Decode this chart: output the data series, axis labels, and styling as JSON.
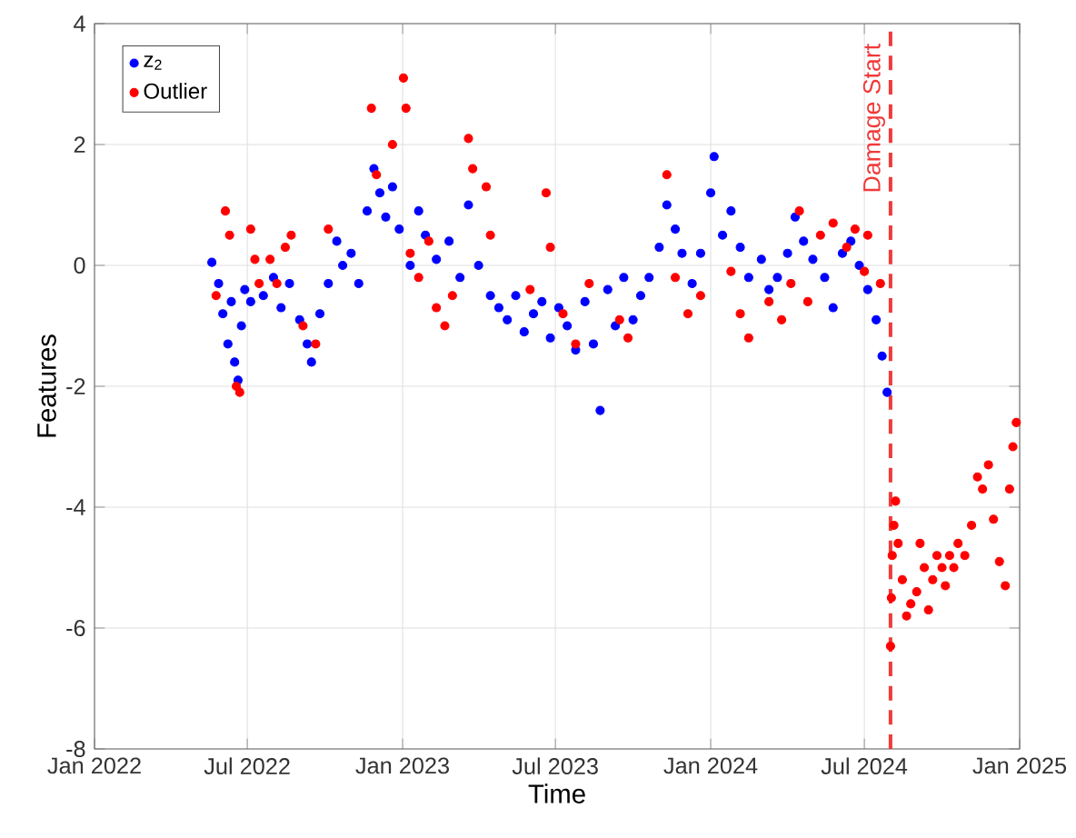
{
  "chart_data": {
    "type": "scatter",
    "xlabel": "Time",
    "ylabel": "Features",
    "xlim": [
      "2022-01-01",
      "2025-01-01"
    ],
    "ylim": [
      -8,
      4
    ],
    "xticks": [
      {
        "value": "2022-01-01",
        "label": "Jan 2022"
      },
      {
        "value": "2022-07-01",
        "label": "Jul 2022"
      },
      {
        "value": "2023-01-01",
        "label": "Jan 2023"
      },
      {
        "value": "2023-07-01",
        "label": "Jul 2023"
      },
      {
        "value": "2024-01-01",
        "label": "Jan 2024"
      },
      {
        "value": "2024-07-01",
        "label": "Jul 2024"
      },
      {
        "value": "2025-01-01",
        "label": "Jan 2025"
      }
    ],
    "yticks": [
      -8,
      -6,
      -4,
      -2,
      0,
      2,
      4
    ],
    "grid": true,
    "legend": "top left",
    "marker": "circle",
    "ref_lines": [
      {
        "axis": "x",
        "value": "2024-08-01",
        "label": "Damage Start",
        "color": "#f03a3a",
        "line_style": "dashed"
      }
    ],
    "series": [
      {
        "name": "z$_{2}$",
        "color": "#0000ff",
        "x": [
          "2022-05-20",
          "2022-05-28",
          "2022-06-02",
          "2022-06-08",
          "2022-06-12",
          "2022-06-16",
          "2022-06-20",
          "2022-06-24",
          "2022-06-28",
          "2022-07-05",
          "2022-07-20",
          "2022-08-01",
          "2022-08-10",
          "2022-08-20",
          "2022-09-01",
          "2022-09-10",
          "2022-09-15",
          "2022-09-25",
          "2022-10-05",
          "2022-10-15",
          "2022-10-22",
          "2022-11-01",
          "2022-11-10",
          "2022-11-20",
          "2022-11-28",
          "2022-12-05",
          "2022-12-12",
          "2022-12-20",
          "2022-12-28",
          "2023-01-10",
          "2023-01-20",
          "2023-01-28",
          "2023-02-10",
          "2023-02-25",
          "2023-03-10",
          "2023-03-20",
          "2023-04-01",
          "2023-04-15",
          "2023-04-25",
          "2023-05-05",
          "2023-05-15",
          "2023-05-25",
          "2023-06-05",
          "2023-06-15",
          "2023-06-25",
          "2023-07-05",
          "2023-07-15",
          "2023-07-25",
          "2023-08-05",
          "2023-08-15",
          "2023-08-23",
          "2023-09-01",
          "2023-09-10",
          "2023-09-20",
          "2023-10-01",
          "2023-10-10",
          "2023-10-20",
          "2023-11-01",
          "2023-11-10",
          "2023-11-20",
          "2023-11-28",
          "2023-12-10",
          "2023-12-20",
          "2024-01-01",
          "2024-01-05",
          "2024-01-15",
          "2024-01-25",
          "2024-02-05",
          "2024-02-15",
          "2024-03-01",
          "2024-03-10",
          "2024-03-20",
          "2024-04-01",
          "2024-04-10",
          "2024-04-20",
          "2024-05-01",
          "2024-05-15",
          "2024-05-25",
          "2024-06-05",
          "2024-06-15",
          "2024-06-25",
          "2024-07-05",
          "2024-07-15",
          "2024-07-22",
          "2024-07-28"
        ],
        "values": [
          0.05,
          -0.3,
          -0.8,
          -1.3,
          -0.6,
          -1.6,
          -1.9,
          -1.0,
          -0.4,
          -0.6,
          -0.5,
          -0.2,
          -0.7,
          -0.3,
          -0.9,
          -1.3,
          -1.6,
          -0.8,
          -0.3,
          0.4,
          0.0,
          0.2,
          -0.3,
          0.9,
          1.6,
          1.2,
          0.8,
          1.3,
          0.6,
          0.0,
          0.9,
          0.5,
          0.1,
          0.4,
          -0.2,
          1.0,
          0.0,
          -0.5,
          -0.7,
          -0.9,
          -0.5,
          -1.1,
          -0.8,
          -0.6,
          -1.2,
          -0.7,
          -1.0,
          -1.4,
          -0.6,
          -1.3,
          -2.4,
          -0.4,
          -1.0,
          -0.2,
          -0.9,
          -0.5,
          -0.2,
          0.3,
          1.0,
          0.6,
          0.2,
          -0.3,
          0.2,
          1.2,
          1.8,
          0.5,
          0.9,
          0.3,
          -0.2,
          0.1,
          -0.4,
          -0.2,
          0.2,
          0.8,
          0.4,
          0.1,
          -0.2,
          -0.7,
          0.2,
          0.4,
          0.0,
          -0.4,
          -0.9,
          -1.5,
          -2.1
        ]
      },
      {
        "name": "Outlier",
        "color": "#ff0000",
        "x": [
          "2022-05-25",
          "2022-06-05",
          "2022-06-10",
          "2022-06-18",
          "2022-06-22",
          "2022-07-05",
          "2022-07-10",
          "2022-07-15",
          "2022-07-28",
          "2022-08-05",
          "2022-08-15",
          "2022-08-22",
          "2022-09-05",
          "2022-09-20",
          "2022-10-05",
          "2022-11-25",
          "2022-12-01",
          "2022-12-20",
          "2023-01-02",
          "2023-01-05",
          "2023-01-10",
          "2023-01-20",
          "2023-02-01",
          "2023-02-10",
          "2023-02-20",
          "2023-03-01",
          "2023-03-20",
          "2023-03-25",
          "2023-04-10",
          "2023-04-15",
          "2023-06-01",
          "2023-06-20",
          "2023-06-25",
          "2023-07-10",
          "2023-07-25",
          "2023-08-10",
          "2023-09-15",
          "2023-09-25",
          "2023-11-10",
          "2023-11-20",
          "2023-12-05",
          "2023-12-20",
          "2024-01-25",
          "2024-02-05",
          "2024-02-15",
          "2024-03-10",
          "2024-03-25",
          "2024-04-05",
          "2024-04-15",
          "2024-04-25",
          "2024-05-10",
          "2024-05-25",
          "2024-06-10",
          "2024-06-20",
          "2024-07-01",
          "2024-07-05",
          "2024-07-20",
          "2024-08-01",
          "2024-08-02",
          "2024-08-03",
          "2024-08-05",
          "2024-08-07",
          "2024-08-10",
          "2024-08-15",
          "2024-08-20",
          "2024-08-25",
          "2024-09-01",
          "2024-09-05",
          "2024-09-10",
          "2024-09-15",
          "2024-09-20",
          "2024-09-25",
          "2024-10-01",
          "2024-10-05",
          "2024-10-10",
          "2024-10-15",
          "2024-10-20",
          "2024-10-28",
          "2024-11-05",
          "2024-11-12",
          "2024-11-18",
          "2024-11-25",
          "2024-12-01",
          "2024-12-08",
          "2024-12-15",
          "2024-12-20",
          "2024-12-24",
          "2024-12-28"
        ],
        "values": [
          -0.5,
          0.9,
          0.5,
          -2.0,
          -2.1,
          0.6,
          0.1,
          -0.3,
          0.1,
          -0.3,
          0.3,
          0.5,
          -1.0,
          -1.3,
          0.6,
          2.6,
          1.5,
          2.0,
          3.1,
          2.6,
          0.2,
          -0.2,
          0.4,
          -0.7,
          -1.0,
          -0.5,
          2.1,
          1.6,
          1.3,
          0.5,
          -0.4,
          1.2,
          0.3,
          -0.8,
          -1.3,
          -0.3,
          -0.9,
          -1.2,
          1.5,
          -0.2,
          -0.8,
          -0.5,
          -0.1,
          -0.8,
          -1.2,
          -0.6,
          -0.9,
          -0.3,
          0.9,
          -0.6,
          0.5,
          0.7,
          0.3,
          0.6,
          -0.1,
          0.5,
          -0.3,
          -6.3,
          -5.5,
          -4.8,
          -4.3,
          -3.9,
          -4.6,
          -5.2,
          -5.8,
          -5.6,
          -5.4,
          -4.6,
          -5.0,
          -5.7,
          -5.2,
          -4.8,
          -5.0,
          -5.3,
          -4.8,
          -5.0,
          -4.6,
          -4.8,
          -4.3,
          -3.5,
          -3.7,
          -3.3,
          -4.2,
          -4.9,
          -5.3,
          -3.7,
          -3.0,
          -2.6
        ]
      }
    ]
  }
}
